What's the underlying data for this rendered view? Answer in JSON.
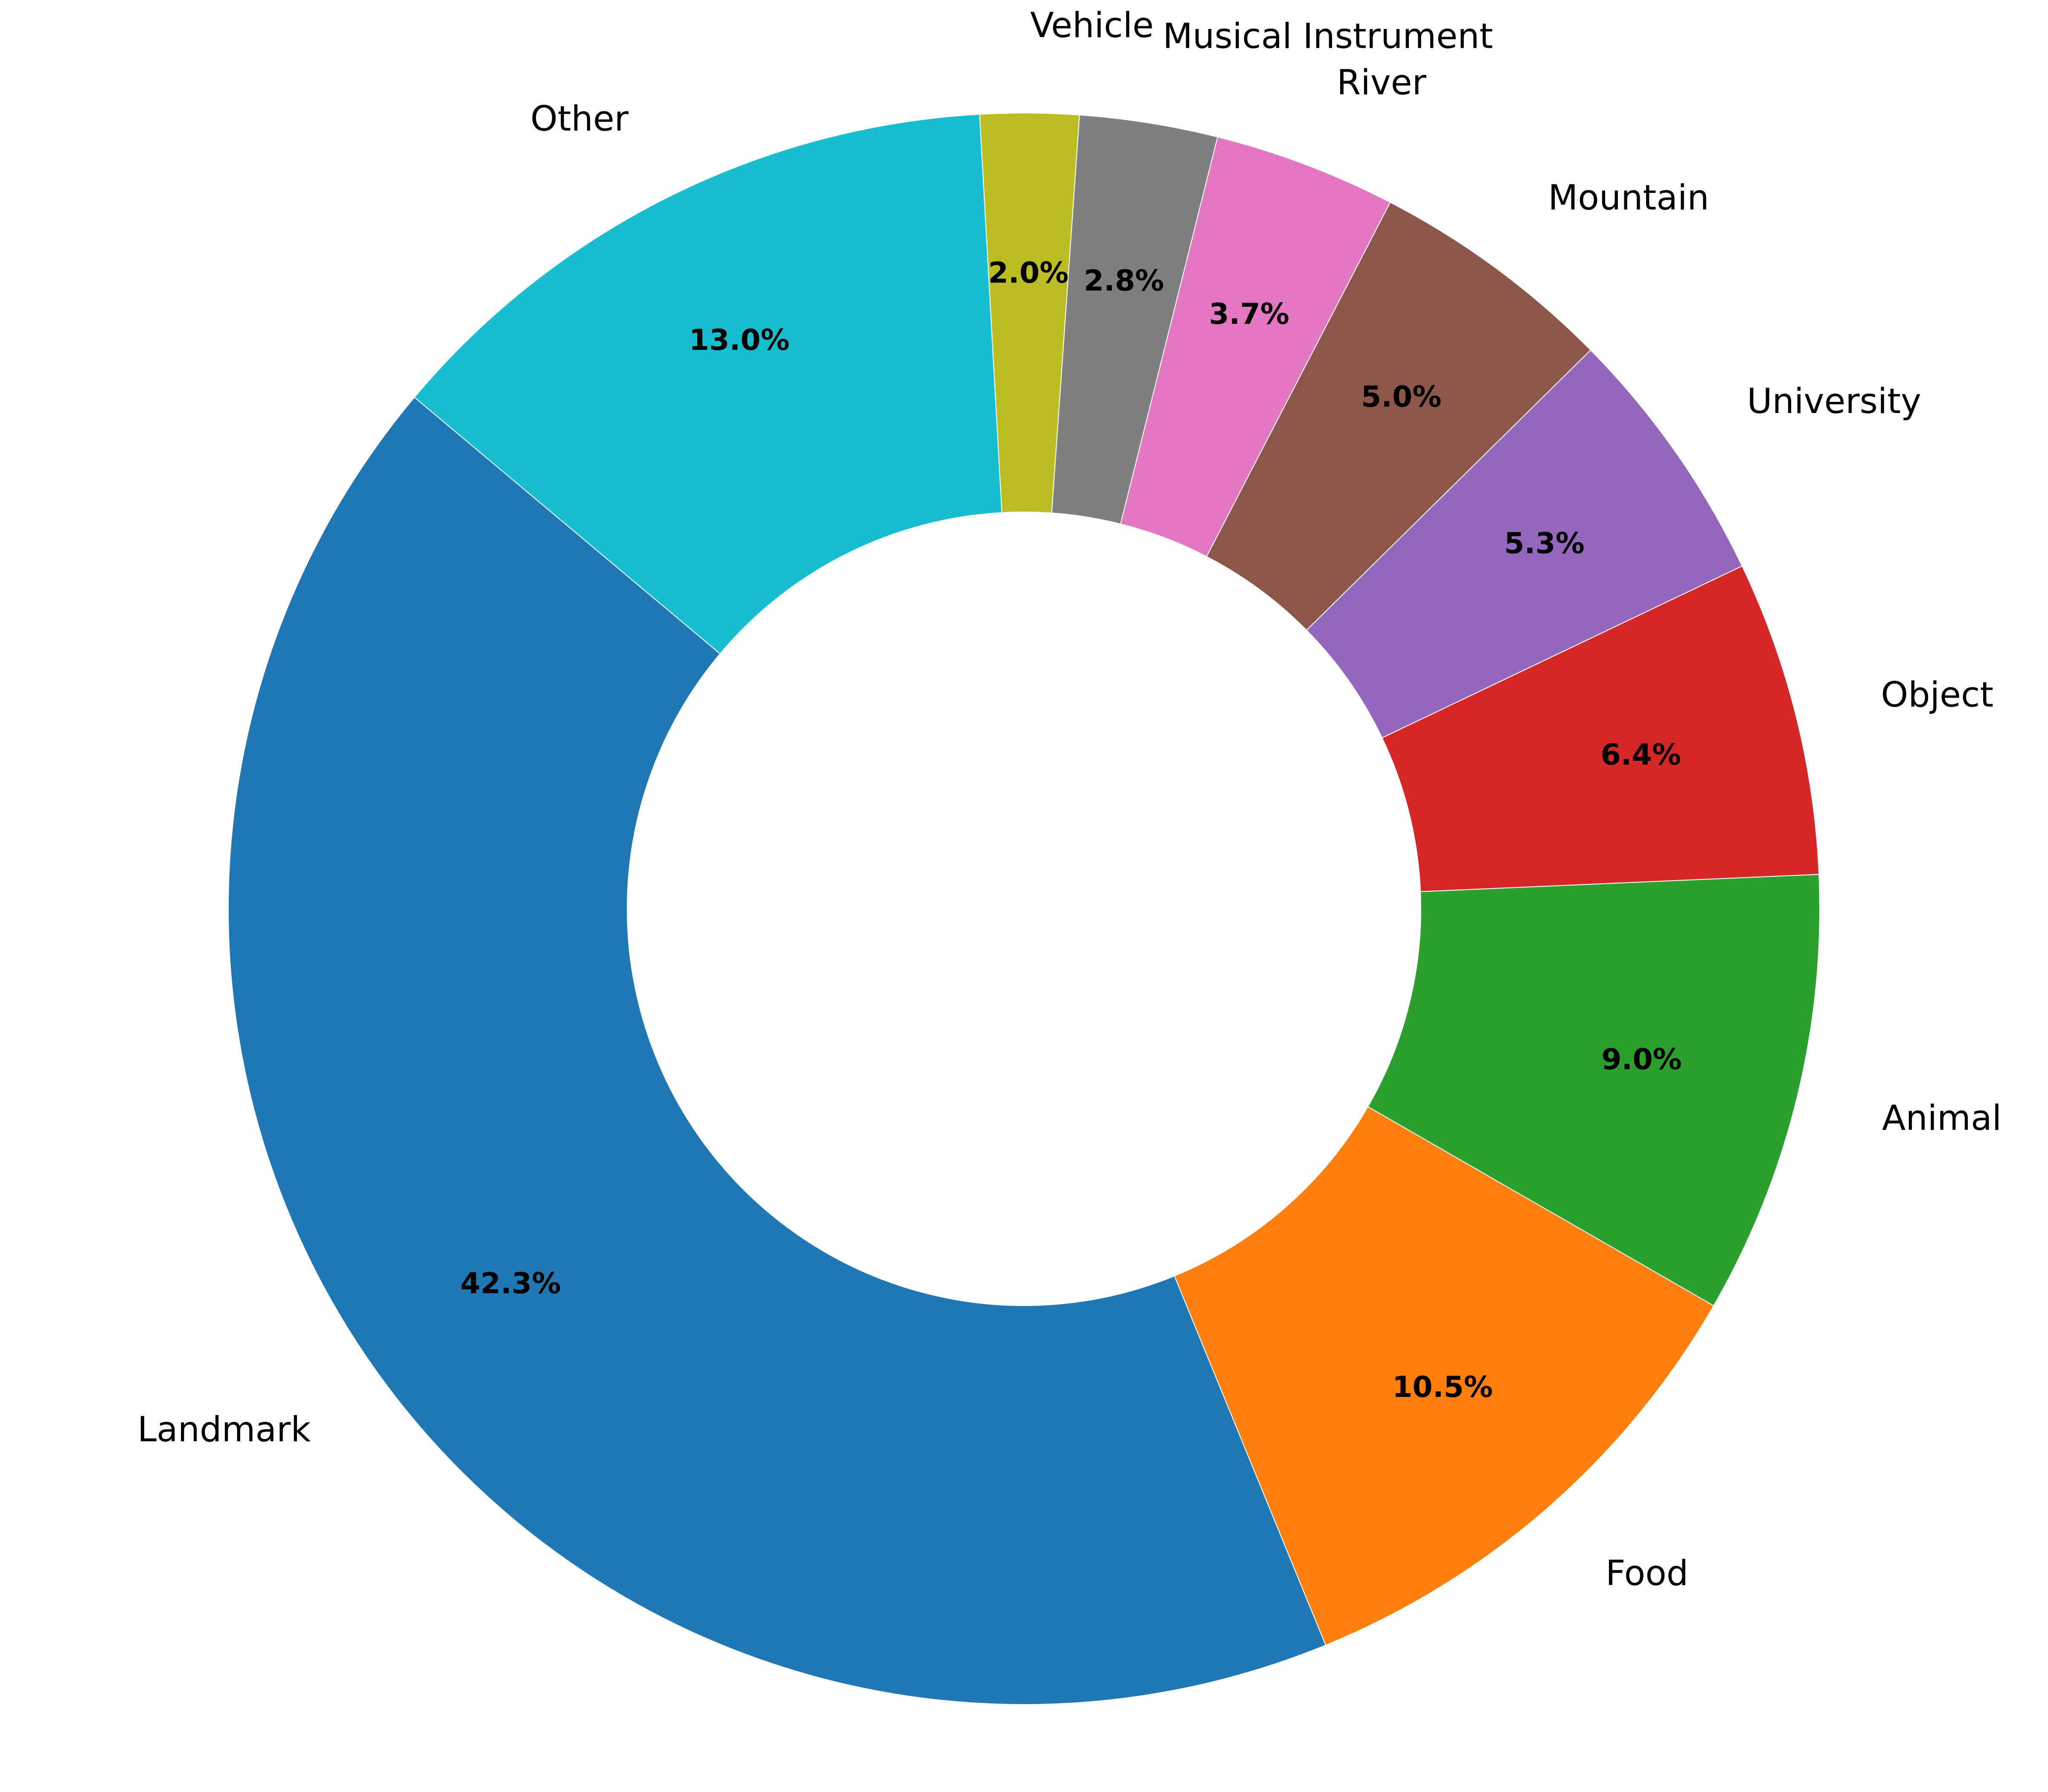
{
  "chart_data": {
    "type": "pie",
    "style": "donut",
    "title": "",
    "categories": [
      "Landmark",
      "Food",
      "Animal",
      "Object",
      "University",
      "Mountain",
      "River",
      "Musical Instrument",
      "Vehicle",
      "Other"
    ],
    "values": [
      42.3,
      10.5,
      9.0,
      6.4,
      5.3,
      5.0,
      3.7,
      2.8,
      2.0,
      13.0
    ],
    "value_labels": [
      "42.3%",
      "10.5%",
      "9.0%",
      "6.4%",
      "5.3%",
      "5.0%",
      "3.7%",
      "2.8%",
      "2.0%",
      "13.0%"
    ],
    "colors": [
      "#1f77b4",
      "#ff7f0e",
      "#2ca02c",
      "#d62728",
      "#9467bd",
      "#8c564b",
      "#e377c2",
      "#7f7f7f",
      "#bcbd22",
      "#17becf"
    ],
    "start_angle_deg": 140,
    "direction": "counterclockwise",
    "legend": "none"
  }
}
